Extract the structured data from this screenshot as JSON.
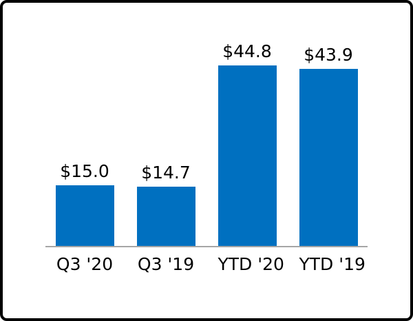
{
  "chart_data": {
    "type": "bar",
    "categories": [
      "Q3 '20",
      "Q3 '19",
      "YTD '20",
      "YTD '19"
    ],
    "values": [
      15.0,
      14.7,
      44.8,
      43.9
    ],
    "data_labels": [
      "$15.0",
      "$14.7",
      "$44.8",
      "$43.9"
    ],
    "title": "",
    "xlabel": "",
    "ylabel": "",
    "ylim": [
      0,
      45
    ],
    "grid": false,
    "legend": false,
    "bar_color": "#0070C0",
    "baseline_color": "#a6a6a6",
    "label_color": "#000000"
  }
}
